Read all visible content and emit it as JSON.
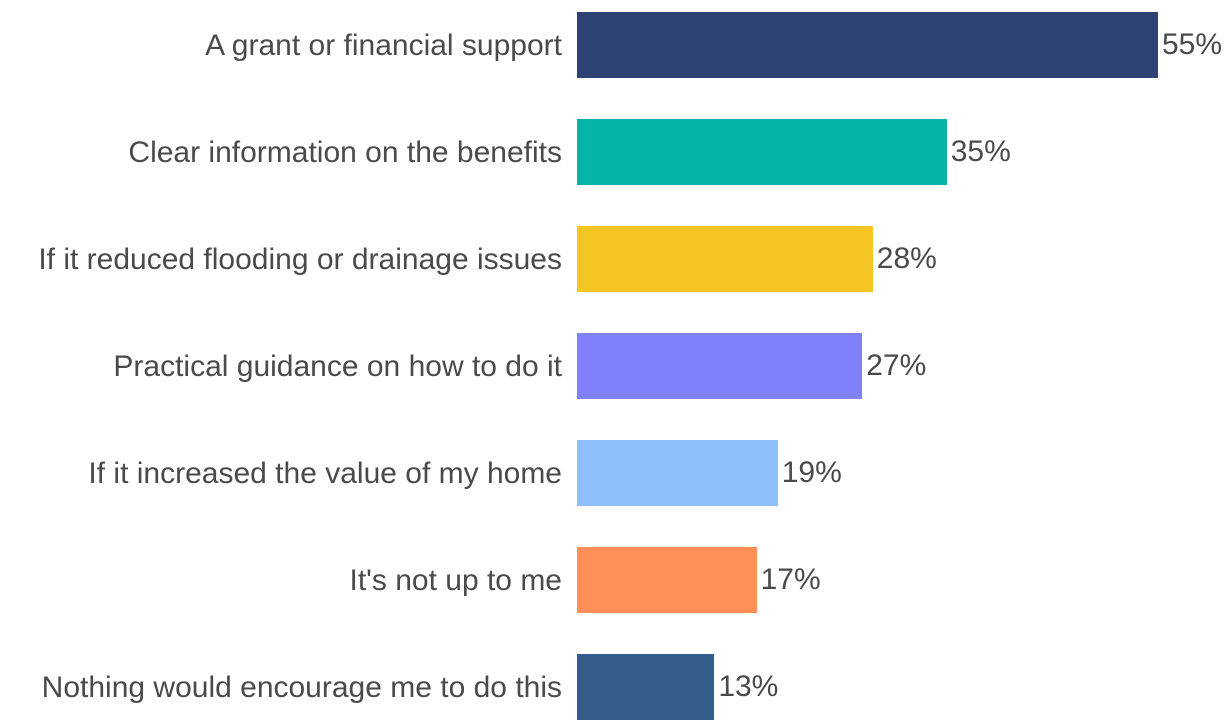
{
  "chart_data": {
    "type": "bar",
    "orientation": "horizontal",
    "categories": [
      "A grant or financial support",
      "Clear information on the benefits",
      "If it reduced flooding or drainage issues",
      "Practical guidance on how to do it",
      "If it increased the value of my home",
      "It's not up to me",
      "Nothing would encourage me to do this"
    ],
    "values": [
      55,
      35,
      28,
      27,
      19,
      17,
      13
    ],
    "value_labels": [
      "55%",
      "35%",
      "28%",
      "27%",
      "19%",
      "17%",
      "13%"
    ],
    "colors": [
      "#2e4374",
      "#05b5a9",
      "#f5c623",
      "#8080fb",
      "#8fbffc",
      "#fe9057",
      "#345d8c"
    ]
  }
}
